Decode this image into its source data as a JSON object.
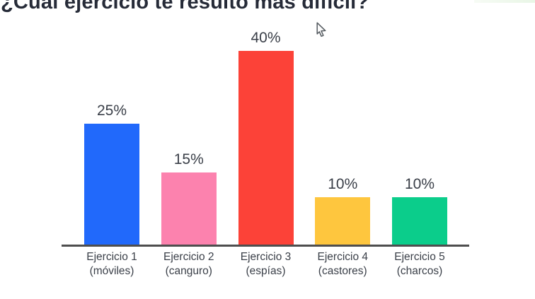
{
  "page": {
    "background_color": "#ffffff",
    "kind": "presentation-slide-with-bar-chart"
  },
  "cursor": {
    "icon": "arrow-pointer-icon"
  },
  "chart_data": {
    "type": "bar",
    "title": "¿Cuál ejercicio te resultó más difícil?",
    "categories": [
      "Ejercicio 1",
      "Ejercicio 2",
      "Ejercicio 3",
      "Ejercicio 4",
      "Ejercicio 5"
    ],
    "category_sublabels": [
      "(móviles)",
      "(canguro)",
      "(espías)",
      "(castores)",
      "(charcos)"
    ],
    "values": [
      25,
      15,
      40,
      10,
      10
    ],
    "value_labels": [
      "25%",
      "15%",
      "40%",
      "10%",
      "10%"
    ],
    "bar_colors": [
      "#2169fb",
      "#fc82ae",
      "#fc4238",
      "#fec63e",
      "#0bcd8b"
    ],
    "ylim": [
      0,
      42
    ],
    "xlabel": "",
    "ylabel": "",
    "grid": false,
    "legend": "none",
    "axis_line_color": "#4e4e4e",
    "title_color": "#262b38",
    "label_color": "#3b4049"
  }
}
